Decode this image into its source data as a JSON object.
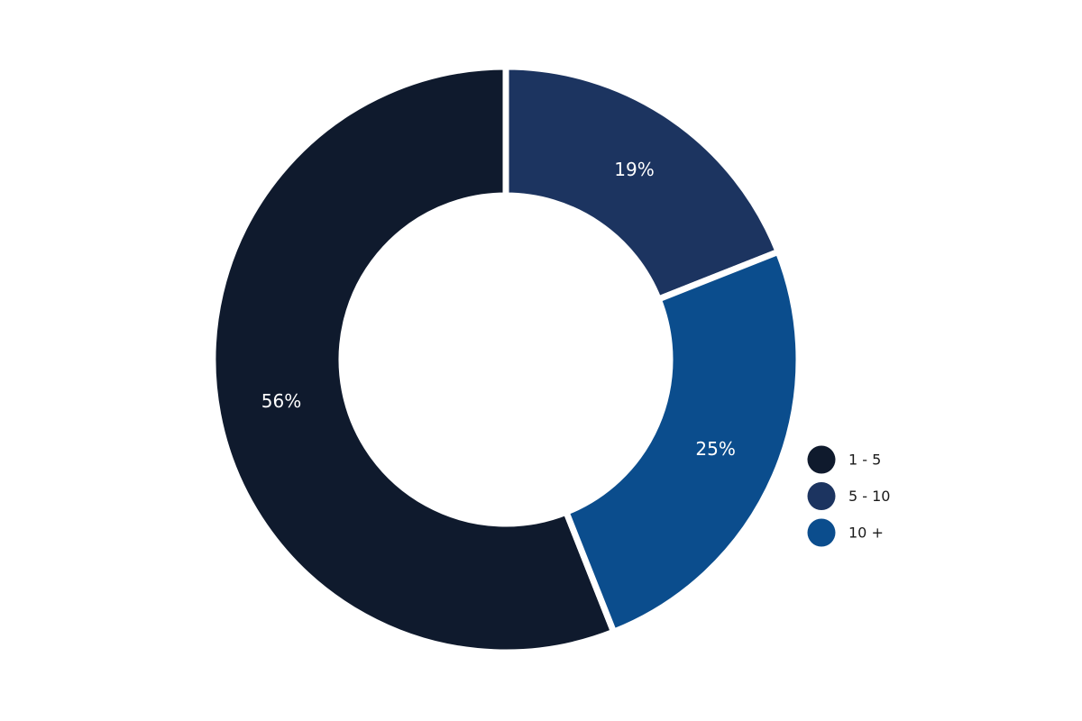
{
  "chart_data": {
    "type": "donut",
    "categories": [
      "1 - 5",
      "5 - 10",
      "10 +"
    ],
    "values": [
      56,
      19,
      25
    ],
    "value_labels": [
      "56%",
      "19%",
      "25%"
    ],
    "colors": [
      "#0f1a2d",
      "#1c3460",
      "#0b4d8d"
    ],
    "legend": "right"
  }
}
